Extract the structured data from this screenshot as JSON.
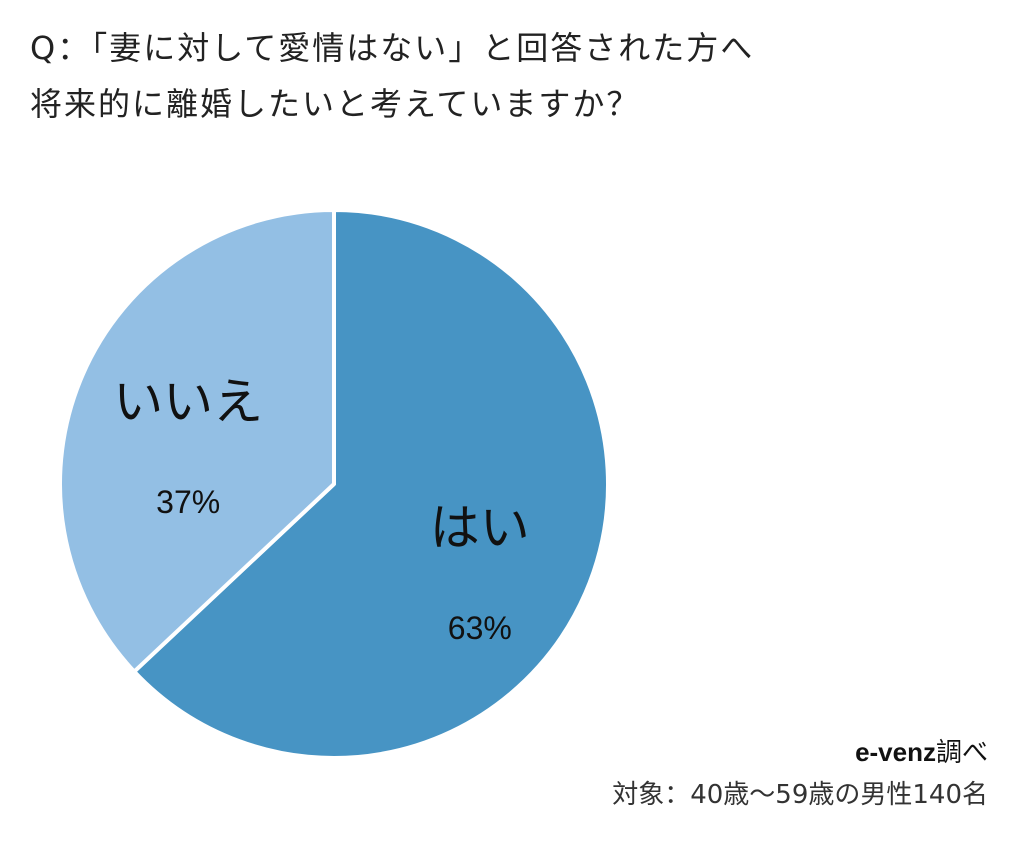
{
  "title": {
    "line1": "Q：「妻に対して愛情はない」と回答された方へ",
    "line2": "将来的に離婚したいと考えていますか？"
  },
  "chart_data": {
    "type": "pie",
    "slices": [
      {
        "label": "はい",
        "value": 63,
        "display": "63%",
        "color": "#4794c4"
      },
      {
        "label": "いいえ",
        "value": 37,
        "display": "37%",
        "color": "#93bfe4"
      }
    ],
    "start": "top",
    "direction": "clockwise",
    "legend": "none"
  },
  "source": {
    "brand": "e-venz",
    "suffix": "調べ",
    "target": "対象：40歳～59歳の男性140名"
  }
}
